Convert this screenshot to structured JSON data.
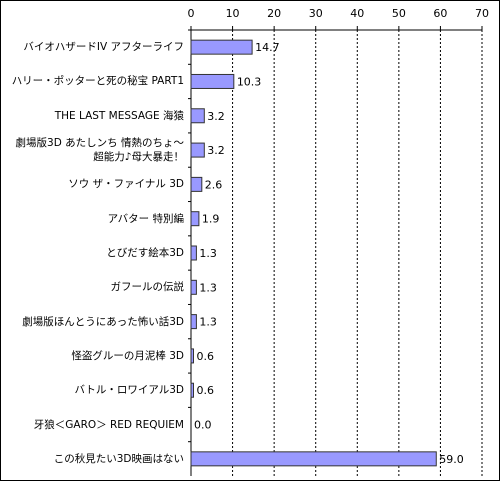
{
  "chart_data": {
    "type": "bar",
    "orientation": "horizontal",
    "categories": [
      "バイオハザードIV アフターライフ",
      "ハリー・ポッターと死の秘宝 PART1",
      "THE LAST MESSAGE 海猿",
      "劇場版3D あたしンち 情熱のちょ～\n超能力♪母大暴走！",
      "ソウ ザ・ファイナル 3D",
      "アバター 特別編",
      "とびだす絵本3D",
      "ガフールの伝説",
      "劇場版ほんとうにあった怖い話3D",
      "怪盗グルーの月泥棒 3D",
      "バトル・ロワイアル3D",
      "牙狼＜GARO＞ RED REQUIEM",
      "この秋見たい3D映画はない"
    ],
    "values": [
      14.7,
      10.3,
      3.2,
      3.2,
      2.6,
      1.9,
      1.3,
      1.3,
      1.3,
      0.6,
      0.6,
      0,
      59
    ],
    "value_labels": [
      "14.7",
      "10.3",
      "3.2",
      "3.2",
      "2.6",
      "1.9",
      "1.3",
      "1.3",
      "1.3",
      "0.6",
      "0.6",
      "0.0",
      "59.0"
    ],
    "color": "#9999ff",
    "xlim": [
      0,
      70
    ],
    "xticks": [
      0,
      10,
      20,
      30,
      40,
      50,
      60,
      70
    ],
    "grid": true
  }
}
